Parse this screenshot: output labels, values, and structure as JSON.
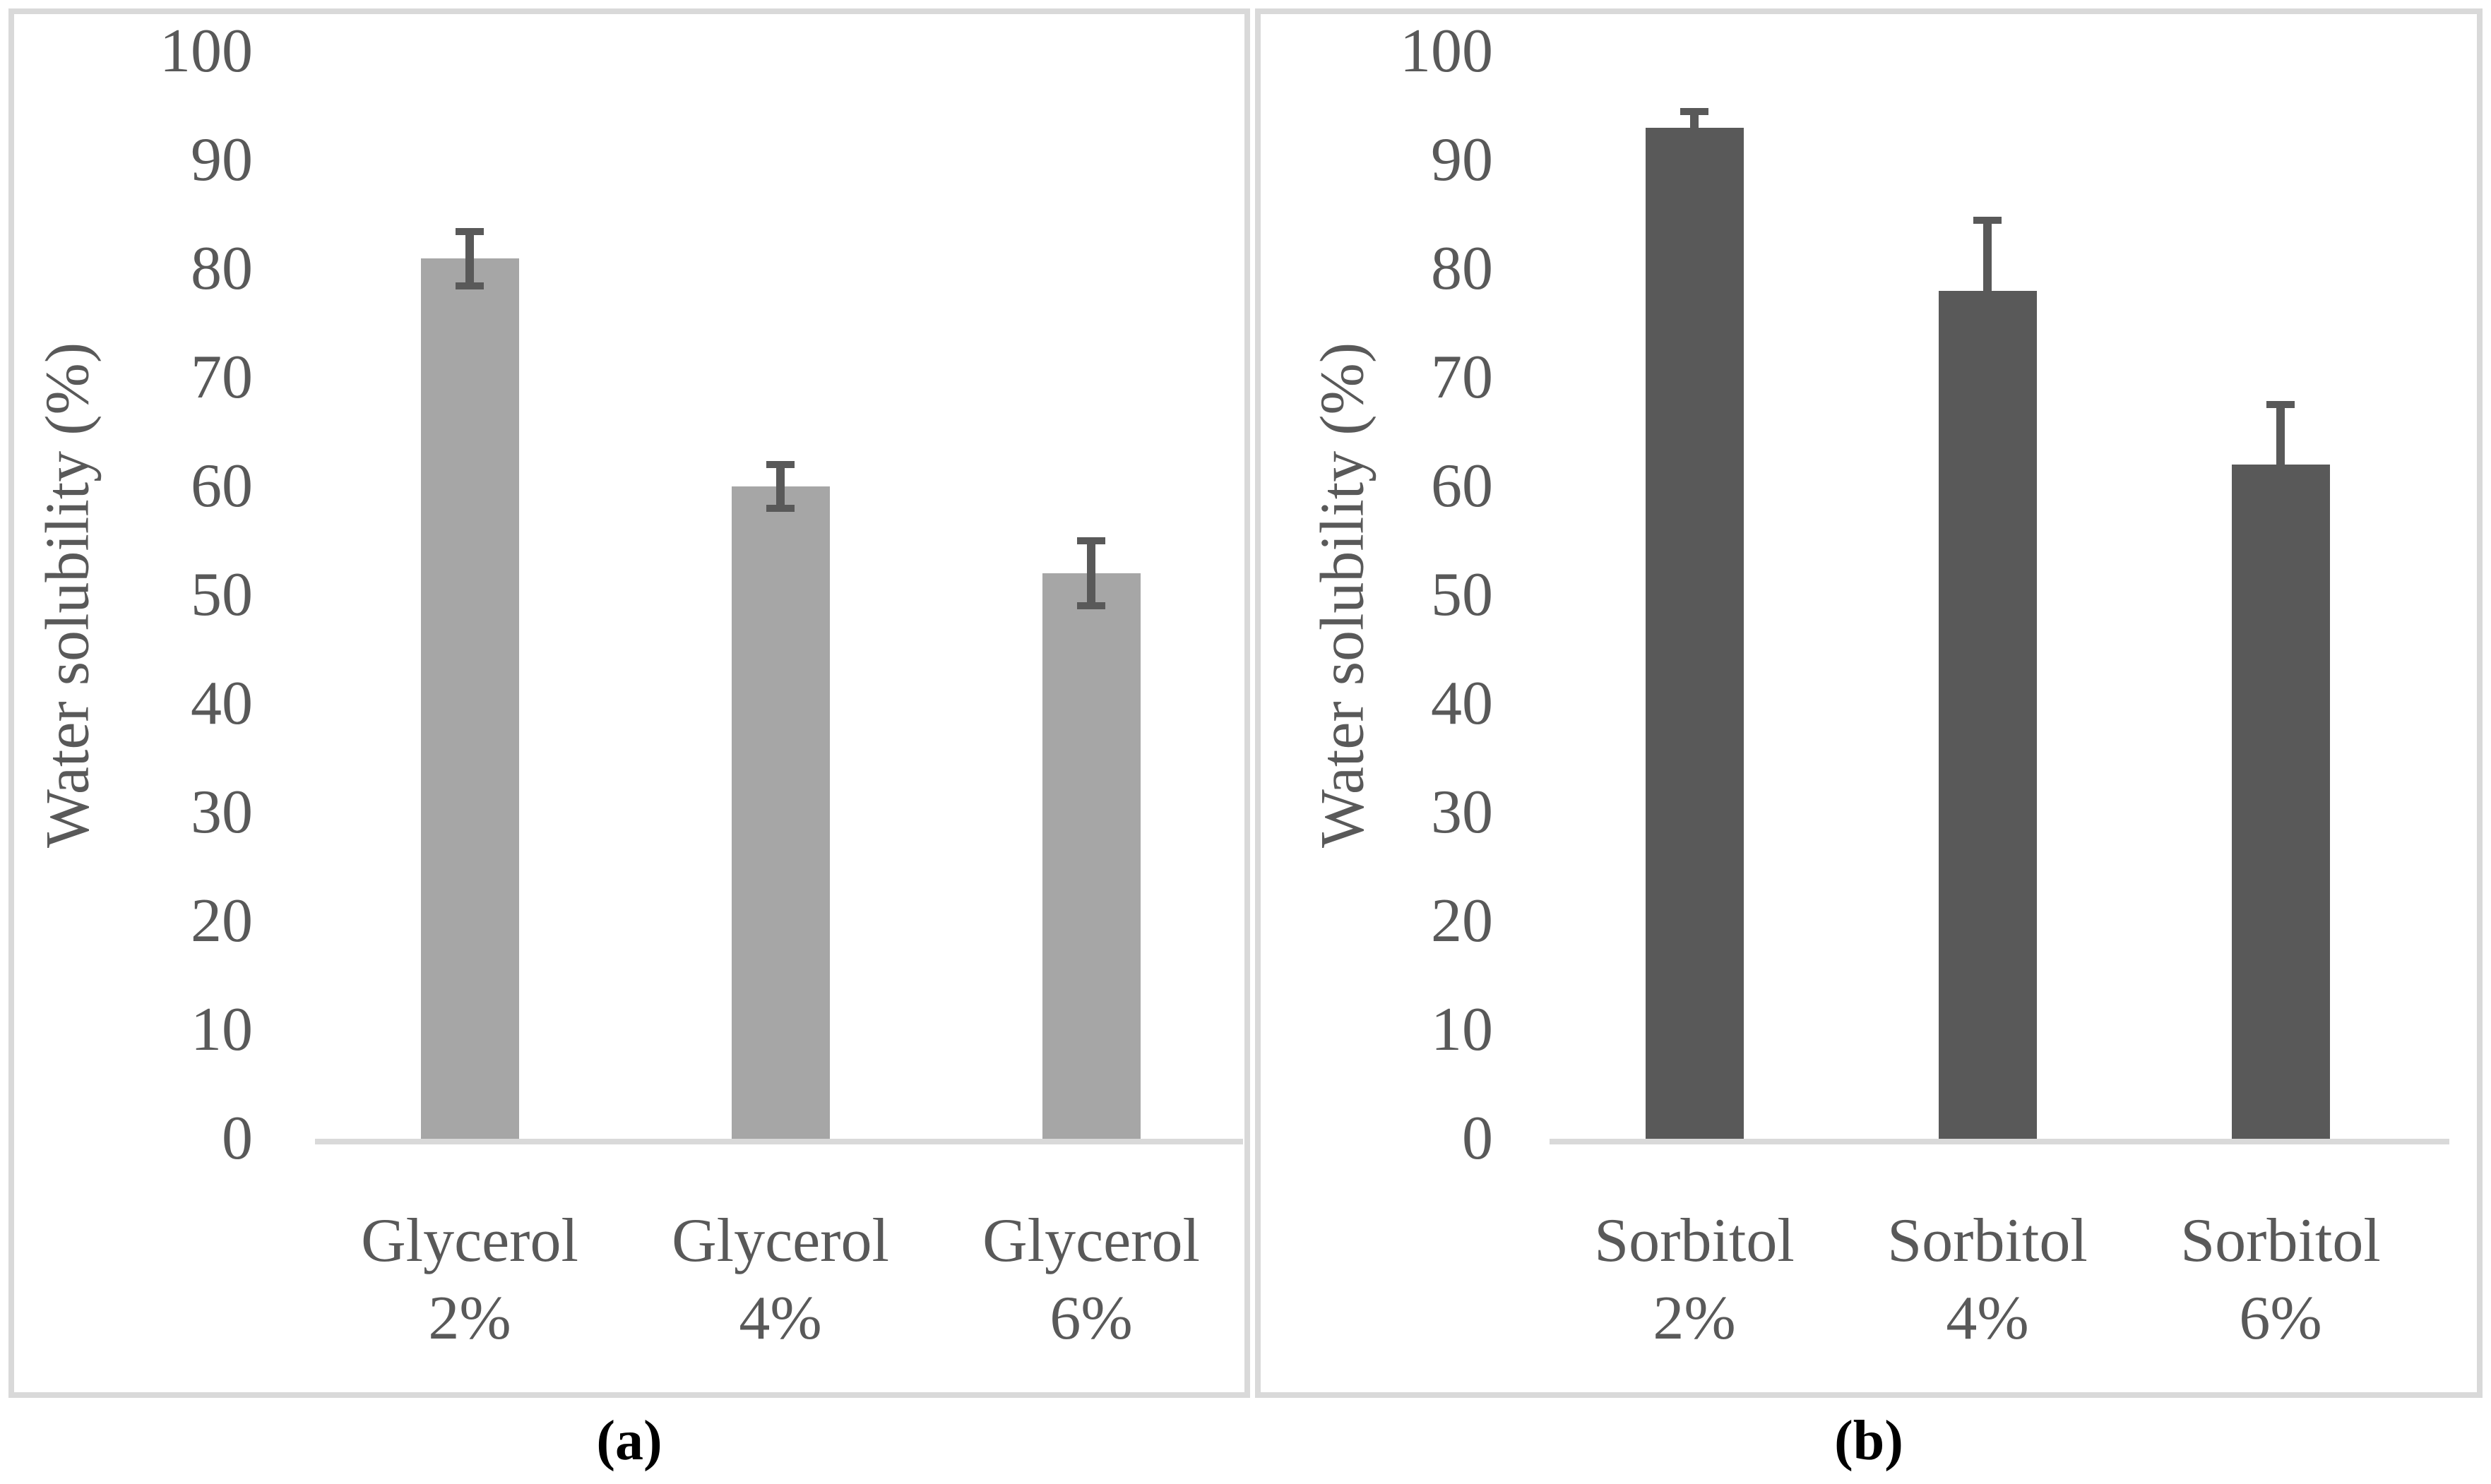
{
  "figure": {
    "background": "#FFFFFF",
    "border_color": "#D9D9D9",
    "baseline_color": "#D9D9D9",
    "text_color": "#595959",
    "caption_color": "#000000",
    "error_bar_color": "#595959"
  },
  "chart_data": [
    {
      "type": "bar",
      "panel_label": "(a)",
      "title": "",
      "xlabel": "",
      "ylabel": "Water solubility (%)",
      "ylim": [
        0,
        100
      ],
      "ytick_step": 10,
      "y_ticks": [
        0,
        10,
        20,
        30,
        40,
        50,
        60,
        70,
        80,
        90,
        100
      ],
      "grid": false,
      "legend": false,
      "categories": [
        "Glycerol 2%",
        "Glycerol 4%",
        "Glycerol 6%"
      ],
      "values": [
        81,
        60,
        52
      ],
      "errors": [
        2.5,
        2,
        3
      ],
      "error_style": "both",
      "bar_color": "#A6A6A6"
    },
    {
      "type": "bar",
      "panel_label": "(b)",
      "title": "",
      "xlabel": "",
      "ylabel": "Water solubility (%)",
      "ylim": [
        0,
        100
      ],
      "ytick_step": 10,
      "y_ticks": [
        0,
        10,
        20,
        30,
        40,
        50,
        60,
        70,
        80,
        90,
        100
      ],
      "grid": false,
      "legend": false,
      "categories": [
        "Sorbitol 2%",
        "Sorbitol 4%",
        "Sorbitol 6%"
      ],
      "values": [
        93,
        78,
        62
      ],
      "errors": [
        1.5,
        6.5,
        5.5
      ],
      "error_style": "both",
      "bar_color": "#595959"
    }
  ]
}
